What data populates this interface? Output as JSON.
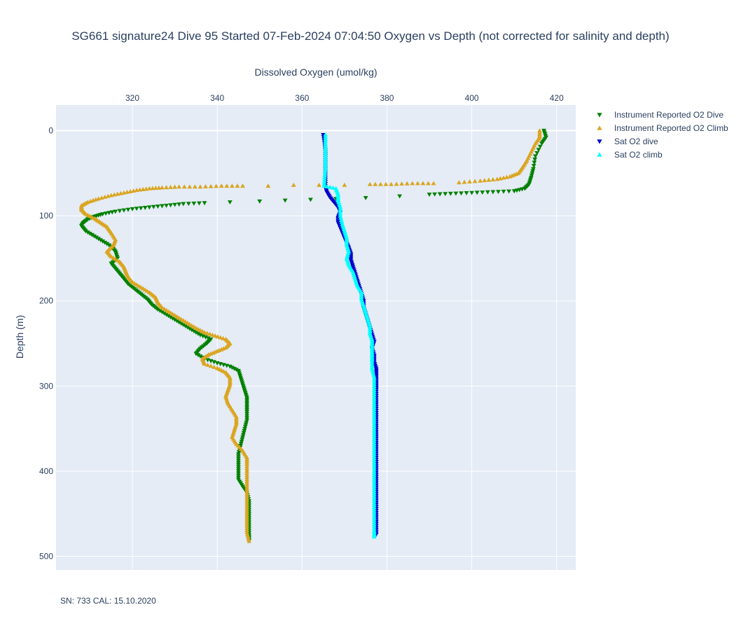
{
  "footer_text": "SN: 733  CAL: 15.10.2020",
  "chart_data": {
    "type": "scatter",
    "title": "SG661 signature24 Dive 95 Started 07-Feb-2024 07:04:50  Oxygen vs Depth (not corrected for salinity and depth)",
    "xlabel": "Dissolved Oxygen (umol/kg)",
    "ylabel": "Depth (m)",
    "x_axis_side": "top",
    "y_reversed": true,
    "xlim": [
      302,
      424.5
    ],
    "ylim": [
      516,
      -30
    ],
    "x_ticks": [
      320,
      340,
      360,
      380,
      400,
      420
    ],
    "y_ticks": [
      0,
      100,
      200,
      300,
      400,
      500
    ],
    "grid": true,
    "legend_position": "top-right outside",
    "colors": {
      "plot_bg": "#e5ecf6",
      "grid": "#ffffff",
      "text": "#2a3f5f"
    },
    "series": [
      {
        "name": "Instrument Reported O2 Dive",
        "color": "#008000",
        "marker": "triangle-down",
        "points": [
          [
            417,
            0
          ],
          [
            417.5,
            8
          ],
          [
            416.5,
            15
          ],
          [
            415,
            30
          ],
          [
            414.5,
            45
          ],
          [
            414,
            55
          ],
          [
            413.5,
            63
          ],
          [
            412.5,
            68
          ],
          [
            410,
            71
          ],
          [
            405,
            72
          ],
          [
            400,
            73
          ],
          [
            395,
            74
          ],
          [
            390,
            75
          ],
          [
            383,
            77
          ],
          [
            375,
            79
          ],
          [
            368,
            80
          ],
          [
            362,
            81
          ],
          [
            356,
            82
          ],
          [
            350,
            83
          ],
          [
            343,
            84
          ],
          [
            337,
            85
          ],
          [
            332,
            86
          ],
          [
            328,
            88
          ],
          [
            324,
            90
          ],
          [
            320,
            92
          ],
          [
            316,
            95
          ],
          [
            313,
            98
          ],
          [
            311,
            101
          ],
          [
            309.5,
            104
          ],
          [
            308.5,
            108
          ],
          [
            308,
            112
          ],
          [
            309,
            118
          ],
          [
            311,
            124
          ],
          [
            313,
            130
          ],
          [
            315,
            136
          ],
          [
            316,
            142
          ],
          [
            316.5,
            150
          ],
          [
            315,
            156
          ],
          [
            316,
            162
          ],
          [
            317,
            168
          ],
          [
            318,
            174
          ],
          [
            319,
            180
          ],
          [
            320.5,
            186
          ],
          [
            322,
            192
          ],
          [
            323.5,
            198
          ],
          [
            324.5,
            204
          ],
          [
            326,
            210
          ],
          [
            328,
            216
          ],
          [
            330,
            222
          ],
          [
            332,
            228
          ],
          [
            334,
            234
          ],
          [
            336,
            240
          ],
          [
            338.5,
            245
          ],
          [
            337.5,
            250
          ],
          [
            336,
            256
          ],
          [
            335,
            262
          ],
          [
            337,
            268
          ],
          [
            340,
            273
          ],
          [
            343,
            277
          ],
          [
            345,
            282
          ],
          [
            345.5,
            290
          ],
          [
            346,
            298
          ],
          [
            346.5,
            306
          ],
          [
            347,
            314
          ],
          [
            347,
            322
          ],
          [
            347,
            330
          ],
          [
            347,
            340
          ],
          [
            346.5,
            350
          ],
          [
            346,
            360
          ],
          [
            345.5,
            370
          ],
          [
            345,
            380
          ],
          [
            345,
            390
          ],
          [
            345,
            400
          ],
          [
            345,
            410
          ],
          [
            346,
            418
          ],
          [
            347,
            425
          ],
          [
            347.5,
            435
          ],
          [
            347.5,
            445
          ],
          [
            347.5,
            455
          ],
          [
            347.5,
            465
          ],
          [
            347.5,
            475
          ],
          [
            347.5,
            482
          ]
        ]
      },
      {
        "name": "Instrument Reported O2 Climb",
        "color": "#daa520",
        "marker": "triangle-up",
        "points": [
          [
            416,
            0
          ],
          [
            416,
            8
          ],
          [
            415,
            15
          ],
          [
            414,
            25
          ],
          [
            413,
            35
          ],
          [
            412,
            43
          ],
          [
            411,
            50
          ],
          [
            409,
            54
          ],
          [
            406,
            57
          ],
          [
            402,
            59
          ],
          [
            397,
            61
          ],
          [
            391,
            62
          ],
          [
            386,
            62
          ],
          [
            381,
            63
          ],
          [
            376,
            63
          ],
          [
            370,
            64
          ],
          [
            364,
            64
          ],
          [
            358,
            64
          ],
          [
            352,
            65
          ],
          [
            346,
            65
          ],
          [
            341,
            65
          ],
          [
            336,
            66
          ],
          [
            331,
            66
          ],
          [
            327,
            67
          ],
          [
            324,
            68
          ],
          [
            321,
            70
          ],
          [
            318,
            73
          ],
          [
            315,
            76
          ],
          [
            312,
            80
          ],
          [
            309.5,
            84
          ],
          [
            308,
            88
          ],
          [
            308,
            93
          ],
          [
            309,
            98
          ],
          [
            311,
            103
          ],
          [
            312.5,
            108
          ],
          [
            314,
            113
          ],
          [
            315,
            120
          ],
          [
            316,
            128
          ],
          [
            315.5,
            135
          ],
          [
            314,
            142
          ],
          [
            315,
            148
          ],
          [
            317,
            154
          ],
          [
            318,
            160
          ],
          [
            318.5,
            166
          ],
          [
            319,
            172
          ],
          [
            320,
            178
          ],
          [
            322,
            184
          ],
          [
            324,
            190
          ],
          [
            325.5,
            196
          ],
          [
            326,
            202
          ],
          [
            327,
            208
          ],
          [
            329,
            214
          ],
          [
            331,
            220
          ],
          [
            333,
            226
          ],
          [
            335,
            232
          ],
          [
            337,
            237
          ],
          [
            339.5,
            241
          ],
          [
            342,
            245
          ],
          [
            343,
            250
          ],
          [
            342,
            255
          ],
          [
            340,
            259
          ],
          [
            338,
            263
          ],
          [
            336.5,
            268
          ],
          [
            337,
            274
          ],
          [
            340,
            279
          ],
          [
            342,
            284
          ],
          [
            343,
            290
          ],
          [
            343,
            298
          ],
          [
            342.5,
            305
          ],
          [
            342,
            312
          ],
          [
            342.5,
            320
          ],
          [
            343.5,
            328
          ],
          [
            344.5,
            336
          ],
          [
            344.5,
            344
          ],
          [
            344,
            352
          ],
          [
            343.5,
            360
          ],
          [
            344.5,
            368
          ],
          [
            346,
            376
          ],
          [
            347,
            384
          ],
          [
            347,
            392
          ],
          [
            347,
            402
          ],
          [
            347,
            412
          ],
          [
            347,
            422
          ],
          [
            347,
            432
          ],
          [
            347,
            442
          ],
          [
            347,
            452
          ],
          [
            347,
            462
          ],
          [
            347,
            472
          ],
          [
            347.5,
            482
          ]
        ]
      },
      {
        "name": "Sat O2 dive",
        "color": "#0000cd",
        "marker": "triangle-down",
        "points": [
          [
            365,
            5
          ],
          [
            365.3,
            15
          ],
          [
            365.5,
            25
          ],
          [
            365.5,
            35
          ],
          [
            365.5,
            45
          ],
          [
            365.5,
            55
          ],
          [
            365.5,
            65
          ],
          [
            365.8,
            72
          ],
          [
            366.5,
            78
          ],
          [
            367.5,
            84
          ],
          [
            368.5,
            90
          ],
          [
            369,
            96
          ],
          [
            368.5,
            102
          ],
          [
            368.5,
            108
          ],
          [
            369,
            114
          ],
          [
            369.5,
            120
          ],
          [
            370,
            126
          ],
          [
            370.5,
            132
          ],
          [
            371,
            138
          ],
          [
            371.5,
            145
          ],
          [
            371.5,
            152
          ],
          [
            372,
            160
          ],
          [
            372.5,
            168
          ],
          [
            373,
            176
          ],
          [
            373.5,
            184
          ],
          [
            374,
            192
          ],
          [
            374.5,
            200
          ],
          [
            374.5,
            208
          ],
          [
            375,
            216
          ],
          [
            375.5,
            224
          ],
          [
            376,
            232
          ],
          [
            376.5,
            240
          ],
          [
            377,
            248
          ],
          [
            376.5,
            256
          ],
          [
            377,
            264
          ],
          [
            377,
            272
          ],
          [
            377.5,
            280
          ],
          [
            377.5,
            288
          ],
          [
            377.5,
            296
          ],
          [
            377.5,
            304
          ],
          [
            377.5,
            314
          ],
          [
            377.5,
            324
          ],
          [
            377.5,
            334
          ],
          [
            377.5,
            344
          ],
          [
            377.5,
            354
          ],
          [
            377.5,
            364
          ],
          [
            377.5,
            374
          ],
          [
            377.5,
            384
          ],
          [
            377.5,
            394
          ],
          [
            377.5,
            404
          ],
          [
            377.5,
            414
          ],
          [
            377.5,
            424
          ],
          [
            377.5,
            434
          ],
          [
            377.5,
            444
          ],
          [
            377.5,
            454
          ],
          [
            377.5,
            464
          ],
          [
            377.5,
            474
          ]
        ]
      },
      {
        "name": "Sat O2 climb",
        "color": "#00ffff",
        "marker": "triangle-up",
        "points": [
          [
            365.5,
            5
          ],
          [
            365.5,
            15
          ],
          [
            365.5,
            25
          ],
          [
            365.5,
            35
          ],
          [
            365.5,
            45
          ],
          [
            365.3,
            55
          ],
          [
            365.2,
            65
          ],
          [
            368,
            68
          ],
          [
            368.5,
            75
          ],
          [
            368.5,
            82
          ],
          [
            369,
            90
          ],
          [
            369,
            100
          ],
          [
            369.5,
            110
          ],
          [
            370,
            118
          ],
          [
            370.5,
            126
          ],
          [
            370.5,
            134
          ],
          [
            371,
            142
          ],
          [
            370.5,
            150
          ],
          [
            371,
            158
          ],
          [
            372,
            166
          ],
          [
            372.5,
            174
          ],
          [
            373,
            182
          ],
          [
            374,
            190
          ],
          [
            374,
            198
          ],
          [
            374.5,
            206
          ],
          [
            375,
            214
          ],
          [
            375.5,
            222
          ],
          [
            376,
            230
          ],
          [
            376,
            238
          ],
          [
            376.5,
            246
          ],
          [
            376.5,
            254
          ],
          [
            376.5,
            262
          ],
          [
            376.5,
            270
          ],
          [
            376.5,
            280
          ],
          [
            377,
            290
          ],
          [
            377,
            300
          ],
          [
            377,
            310
          ],
          [
            377,
            320
          ],
          [
            377,
            330
          ],
          [
            377,
            340
          ],
          [
            377,
            350
          ],
          [
            377,
            360
          ],
          [
            377,
            370
          ],
          [
            377,
            380
          ],
          [
            377,
            390
          ],
          [
            377,
            400
          ],
          [
            377,
            410
          ],
          [
            377,
            420
          ],
          [
            377,
            430
          ],
          [
            377,
            440
          ],
          [
            377,
            450
          ],
          [
            377,
            460
          ],
          [
            377,
            470
          ],
          [
            377,
            477
          ]
        ]
      }
    ]
  }
}
